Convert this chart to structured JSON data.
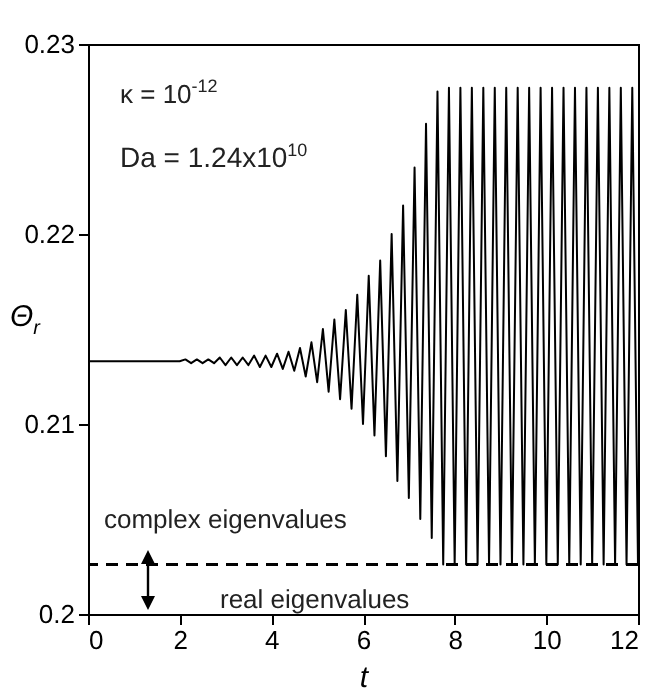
{
  "chart_data": {
    "type": "line",
    "xlabel": "t",
    "ylabel": "Θ$_{r}$",
    "annotations": [
      "κ = 10$^{-12}$",
      "Da = 1.24x10$^{10}$",
      "complex eigenvalues",
      "real eigenvalues"
    ],
    "x": [
      0,
      2,
      2.125,
      2.25,
      2.375,
      2.5,
      2.625,
      2.75,
      2.875,
      3,
      3.125,
      3.25,
      3.375,
      3.5,
      3.625,
      3.75,
      3.875,
      4,
      4.125,
      4.25,
      4.375,
      4.5,
      4.625,
      4.75,
      4.875,
      5,
      5.125,
      5.25,
      5.375,
      5.5,
      5.625,
      5.75,
      5.875,
      6,
      6.125,
      6.25,
      6.375,
      6.5,
      6.625,
      6.75,
      6.875,
      7,
      7.125,
      7.25,
      7.375,
      7.5,
      7.625,
      7.75,
      7.875,
      8,
      8.125,
      8.25,
      8.375,
      8.5,
      8.625,
      8.75,
      8.875,
      9,
      9.125,
      9.25,
      9.375,
      9.5,
      9.625,
      9.75,
      9.875,
      10,
      10.125,
      10.25,
      10.375,
      10.5,
      10.625,
      10.75,
      10.875,
      11,
      11.125,
      11.25,
      11.375,
      11.5,
      11.625,
      11.75,
      11.875,
      12
    ],
    "series": [
      {
        "color": "#000000",
        "values": [
          0.2133,
          0.2133,
          0.2134,
          0.2132,
          0.2134,
          0.2132,
          0.2134,
          0.2132,
          0.2135,
          0.2131,
          0.2135,
          0.2131,
          0.2135,
          0.2131,
          0.2136,
          0.213,
          0.2136,
          0.213,
          0.2137,
          0.2129,
          0.2138,
          0.2128,
          0.214,
          0.2125,
          0.2143,
          0.2122,
          0.215,
          0.2117,
          0.2155,
          0.2113,
          0.216,
          0.2108,
          0.2168,
          0.21,
          0.2178,
          0.2094,
          0.2186,
          0.2083,
          0.22,
          0.207,
          0.2215,
          0.2061,
          0.2235,
          0.205,
          0.2258,
          0.204,
          0.2275,
          0.2026,
          0.2277,
          0.2026,
          0.2277,
          0.2026,
          0.2277,
          0.2026,
          0.2277,
          0.2026,
          0.2277,
          0.2026,
          0.2277,
          0.2026,
          0.2277,
          0.2026,
          0.2277,
          0.2026,
          0.2277,
          0.2026,
          0.2277,
          0.2026,
          0.2277,
          0.2026,
          0.2277,
          0.2026,
          0.2277,
          0.2026,
          0.2277,
          0.2026,
          0.2277,
          0.2026,
          0.2277,
          0.2026,
          0.2277,
          0.2026
        ]
      }
    ],
    "xlim": [
      0,
      12
    ],
    "ylim": [
      0.2,
      0.23
    ],
    "xticks": [
      0,
      2,
      4,
      6,
      8,
      10,
      12
    ],
    "yticks": [
      0.2,
      0.21,
      0.22,
      0.23
    ],
    "ref_lines": [
      {
        "axis": "y",
        "value": 0.2026,
        "line_style": "dashed"
      }
    ]
  }
}
